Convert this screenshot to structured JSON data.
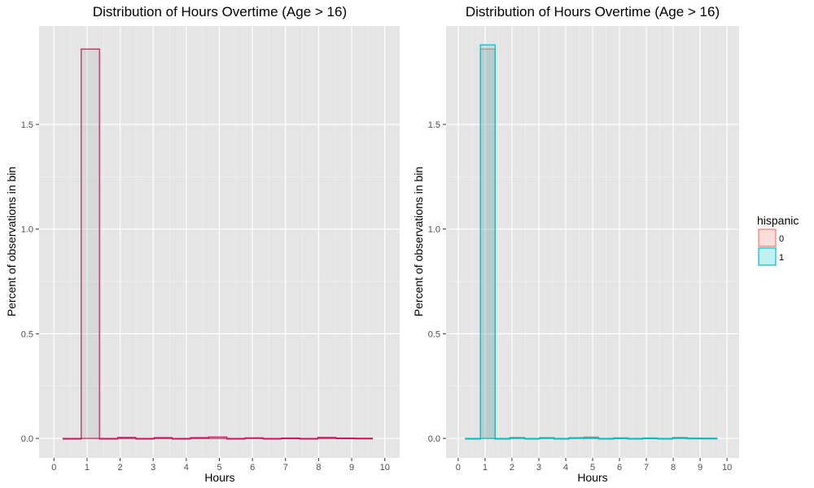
{
  "chart_data": [
    {
      "type": "bar",
      "title": "Distribution of Hours Overtime (Age > 16)",
      "xlabel": "Hours",
      "ylabel": "Percent of observations in bin",
      "xlim": [
        -0.45,
        10.45
      ],
      "ylim": [
        -0.093,
        1.97
      ],
      "xticks": [
        0,
        1,
        2,
        3,
        4,
        5,
        6,
        7,
        8,
        9,
        10
      ],
      "yticks": [
        0.0,
        0.5,
        1.0,
        1.5
      ],
      "ytick_labels": [
        "0.0",
        "0.5",
        "1.0",
        "1.5"
      ],
      "grid": true,
      "bin_width": 0.55,
      "x": [
        0.55,
        1.1,
        1.65,
        2.2,
        2.75,
        3.3,
        3.85,
        4.4,
        4.95,
        5.5,
        6.05,
        6.6,
        7.15,
        7.7,
        8.25,
        8.8,
        9.35
      ],
      "series": [
        {
          "values": [
            0.0,
            1.86,
            0.0,
            0.005,
            0.0,
            0.004,
            0.0,
            0.004,
            0.007,
            0.0,
            0.003,
            0.0,
            0.002,
            0.0,
            0.005,
            0.002,
            0.001
          ],
          "color": "#c2185b"
        }
      ]
    },
    {
      "type": "bar",
      "title": "Distribution of Hours Overtime (Age > 16)",
      "xlabel": "Hours",
      "ylabel": "Percent of observations in bin",
      "xlim": [
        -0.45,
        10.45
      ],
      "ylim": [
        -0.093,
        1.97
      ],
      "xticks": [
        0,
        1,
        2,
        3,
        4,
        5,
        6,
        7,
        8,
        9,
        10
      ],
      "yticks": [
        0.0,
        0.5,
        1.0,
        1.5
      ],
      "ytick_labels": [
        "0.0",
        "0.5",
        "1.0",
        "1.5"
      ],
      "grid": true,
      "bin_width": 0.55,
      "x": [
        0.55,
        1.1,
        1.65,
        2.2,
        2.75,
        3.3,
        3.85,
        4.4,
        4.95,
        5.5,
        6.05,
        6.6,
        7.15,
        7.7,
        8.25,
        8.8,
        9.35
      ],
      "legend": {
        "title": "hispanic",
        "placement": "right"
      },
      "series": [
        {
          "name": "0",
          "values": [
            0.0,
            1.86,
            0.0,
            0.005,
            0.0,
            0.004,
            0.0,
            0.004,
            0.007,
            0.0,
            0.003,
            0.0,
            0.002,
            0.0,
            0.005,
            0.002,
            0.001
          ],
          "color": "#f8766d",
          "fill": "#f8766d"
        },
        {
          "name": "1",
          "values": [
            0.0,
            1.88,
            0.0,
            0.003,
            0.0,
            0.003,
            0.0,
            0.003,
            0.004,
            0.0,
            0.002,
            0.0,
            0.002,
            0.0,
            0.003,
            0.001,
            0.001
          ],
          "color": "#00bfc4",
          "fill": "#00bfc4"
        }
      ]
    }
  ]
}
